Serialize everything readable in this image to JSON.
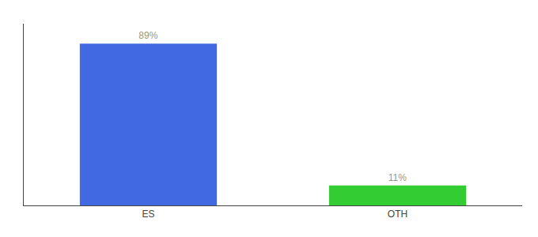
{
  "chart_data": {
    "type": "bar",
    "categories": [
      "ES",
      "OTH"
    ],
    "values": [
      89,
      11
    ],
    "value_labels": [
      "89%",
      "11%"
    ],
    "data_labels": true,
    "colors": [
      "#4169e1",
      "#33cc33"
    ],
    "ylim": [
      0,
      100
    ],
    "grid": false,
    "tick_labels": "x"
  }
}
